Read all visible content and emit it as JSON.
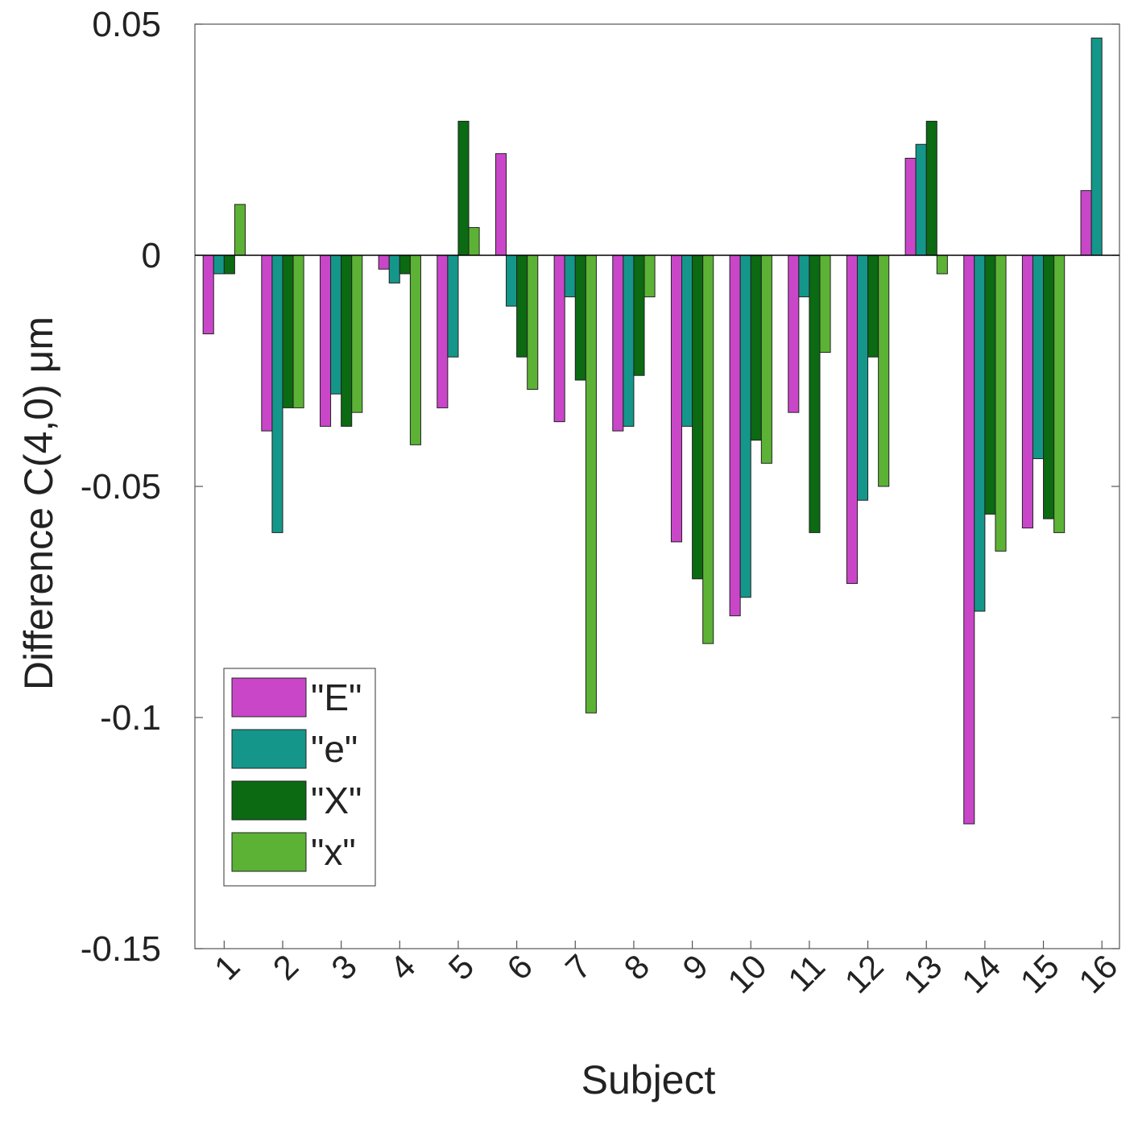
{
  "chart_data": {
    "type": "bar",
    "xlabel": "Subject",
    "ylabel": "Difference C(4,0) μm",
    "ylim": [
      -0.15,
      0.05
    ],
    "yticks": [
      0.05,
      0,
      -0.05,
      -0.1,
      -0.15
    ],
    "ytick_labels": [
      "0.05",
      "0",
      "-0.05",
      "-0.1",
      "-0.15"
    ],
    "categories": [
      "1",
      "2",
      "3",
      "4",
      "5",
      "6",
      "7",
      "8",
      "9",
      "10",
      "11",
      "12",
      "13",
      "14",
      "15",
      "16"
    ],
    "legend_position": "bottom-left",
    "grid": false,
    "series": [
      {
        "name": "\"E\"",
        "color": "#c946c9",
        "values": [
          -0.017,
          -0.038,
          -0.037,
          -0.003,
          -0.033,
          0.022,
          -0.036,
          -0.038,
          -0.062,
          -0.078,
          -0.034,
          -0.071,
          0.021,
          -0.123,
          -0.059,
          0.014
        ]
      },
      {
        "name": "\"e\"",
        "color": "#14978a",
        "values": [
          -0.004,
          -0.06,
          -0.03,
          -0.006,
          -0.022,
          -0.011,
          -0.009,
          -0.037,
          -0.037,
          -0.074,
          -0.009,
          -0.053,
          0.024,
          -0.077,
          -0.044,
          0.047
        ]
      },
      {
        "name": "\"X\"",
        "color": "#0b6a12",
        "values": [
          -0.004,
          -0.033,
          -0.037,
          -0.004,
          0.029,
          -0.022,
          -0.027,
          -0.026,
          -0.07,
          -0.04,
          -0.06,
          -0.022,
          0.029,
          -0.056,
          -0.057,
          0.0
        ]
      },
      {
        "name": "\"x\"",
        "color": "#5cb235",
        "values": [
          0.011,
          -0.033,
          -0.034,
          -0.041,
          0.006,
          -0.029,
          -0.099,
          -0.009,
          -0.084,
          -0.045,
          -0.021,
          -0.05,
          -0.004,
          -0.064,
          -0.06,
          0.0
        ]
      }
    ]
  }
}
